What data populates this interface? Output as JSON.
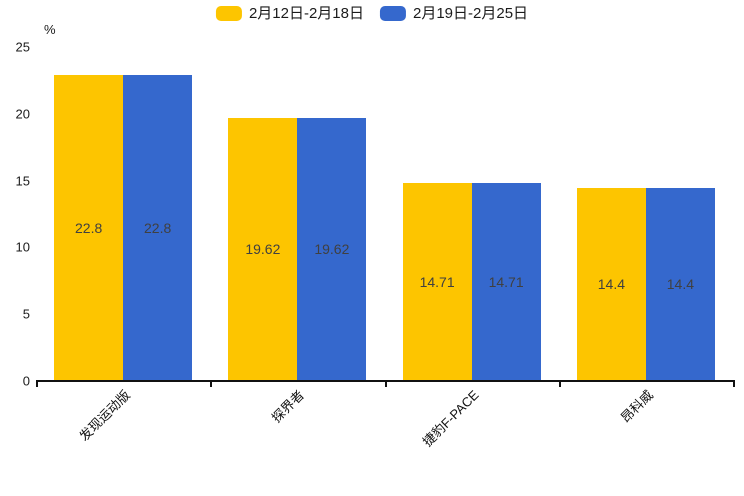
{
  "chart_data": {
    "type": "bar",
    "title": "",
    "categories": [
      "发现运动版",
      "探界者",
      "捷豹F-PACE",
      "昂科威"
    ],
    "series": [
      {
        "name": "2月12日-2月18日",
        "color": "#FDC500",
        "values": [
          22.8,
          19.62,
          14.71,
          14.4
        ]
      },
      {
        "name": "2月19日-2月25日",
        "color": "#3568CD",
        "values": [
          22.8,
          19.62,
          14.71,
          14.4
        ]
      }
    ],
    "value_labels": [
      [
        "22.8",
        "19.62",
        "14.71",
        "14.4"
      ],
      [
        "22.8",
        "19.62",
        "14.71",
        "14.4"
      ]
    ],
    "xlabel": "",
    "ylabel": "%",
    "y_ticks": [
      0,
      5,
      10,
      15,
      20,
      25
    ],
    "ylim": [
      0,
      25
    ],
    "grid": false,
    "legend_position": "top",
    "bar_value_labels_inside": true,
    "x_label_rotation_deg": -45
  },
  "colors": {
    "background": "#ffffff",
    "axis": "#111111",
    "bar_label_text": "#404040",
    "tick_text": "#1b1b1b"
  }
}
